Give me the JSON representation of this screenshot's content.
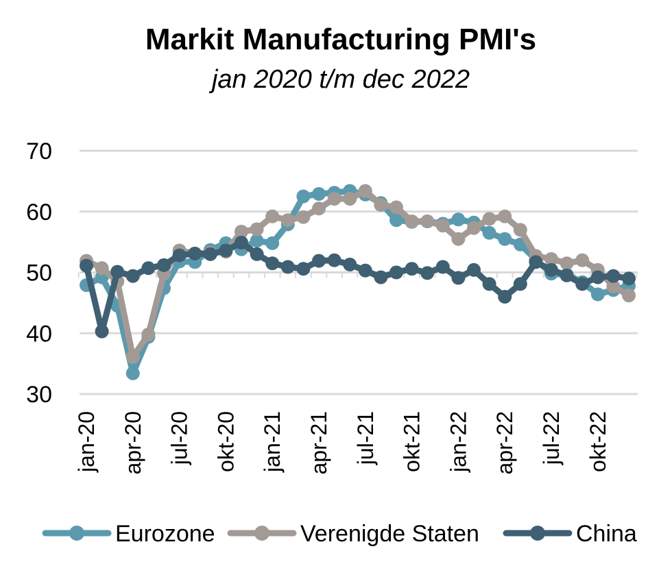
{
  "chart_data": {
    "type": "line",
    "title": "Markit Manufacturing PMI's",
    "subtitle": "jan 2020 t/m dec 2022",
    "xlabel": "",
    "ylabel": "",
    "ylim": [
      30,
      70
    ],
    "yticks": [
      30,
      40,
      50,
      60,
      70
    ],
    "grid": true,
    "legend": "bottom",
    "x_tick_labels": [
      "jan-20",
      "apr-20",
      "jul-20",
      "okt-20",
      "jan-21",
      "apr-21",
      "jul-21",
      "okt-21",
      "jan-22",
      "apr-22",
      "jul-22",
      "okt-22"
    ],
    "x_tick_every": 3,
    "n_points": 36,
    "series": [
      {
        "name": "Eurozone",
        "color": "#5b9aae",
        "values": [
          47.9,
          49.2,
          44.5,
          33.4,
          39.4,
          47.4,
          51.8,
          51.7,
          53.7,
          54.8,
          53.8,
          55.2,
          54.8,
          57.9,
          62.5,
          62.9,
          63.1,
          63.4,
          62.8,
          61.4,
          58.6,
          58.3,
          58.4,
          58.0,
          58.7,
          58.2,
          56.5,
          55.5,
          54.6,
          52.1,
          49.8,
          49.6,
          48.4,
          46.4,
          47.1,
          47.8
        ]
      },
      {
        "name": "Verenigde Staten",
        "color": "#a39a95",
        "values": [
          51.9,
          50.7,
          48.5,
          36.1,
          39.8,
          49.8,
          53.6,
          53.1,
          53.2,
          53.4,
          56.7,
          57.1,
          59.2,
          58.6,
          59.1,
          60.5,
          62.1,
          62.1,
          63.4,
          61.1,
          60.7,
          58.4,
          58.4,
          57.7,
          55.5,
          57.3,
          58.8,
          59.2,
          57.0,
          52.7,
          52.2,
          51.5,
          52.0,
          50.4,
          47.7,
          46.2
        ]
      },
      {
        "name": "China",
        "color": "#3f5f72",
        "values": [
          51.1,
          40.3,
          50.1,
          49.4,
          50.7,
          51.2,
          52.8,
          53.1,
          53.0,
          53.6,
          54.9,
          53.0,
          51.5,
          50.9,
          50.6,
          51.9,
          52.0,
          51.3,
          50.3,
          49.2,
          50.0,
          50.6,
          49.9,
          50.9,
          49.1,
          50.4,
          48.1,
          46.0,
          48.1,
          51.7,
          50.4,
          49.5,
          48.1,
          49.2,
          49.4,
          49.0
        ]
      }
    ]
  }
}
